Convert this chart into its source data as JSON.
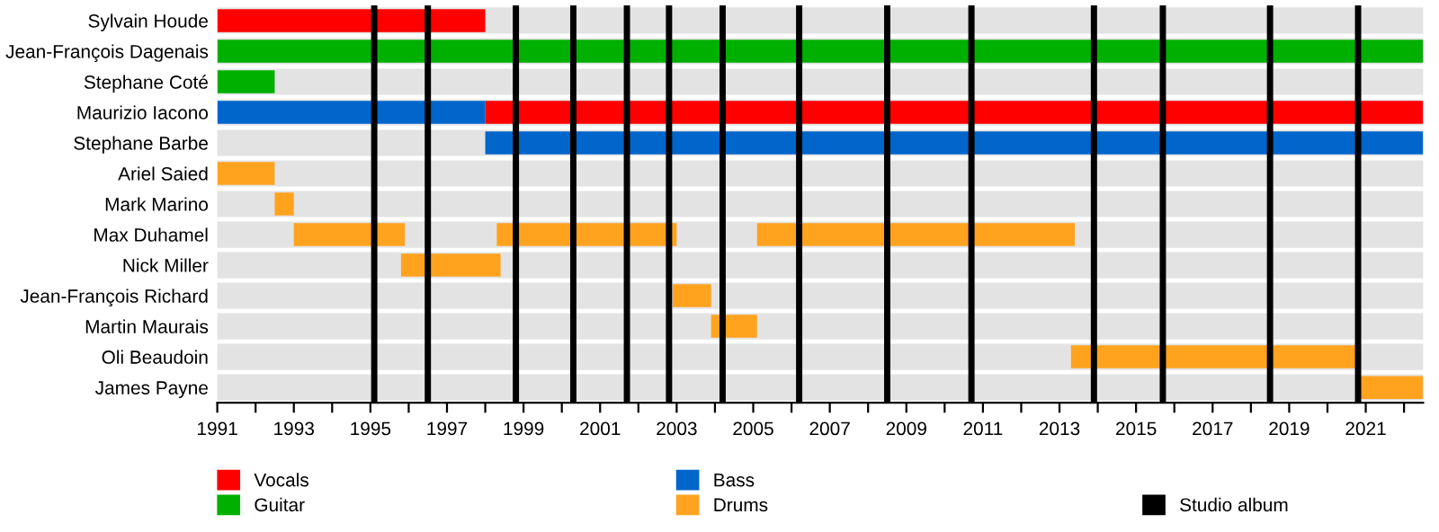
{
  "chart_data": {
    "type": "bar",
    "orientation": "horizontal",
    "categories": [
      "Sylvain Houde",
      "Jean-François Dagenais",
      "Stephane Coté",
      "Maurizio Iacono",
      "Stephane Barbe",
      "Ariel Saied",
      "Mark Marino",
      "Max Duhamel",
      "Nick Miller",
      "Jean-François Richard",
      "Martin Maurais",
      "Oli Beaudoin",
      "James Payne"
    ],
    "series": [
      {
        "name": "Vocals",
        "color": "#ff0000",
        "base": [
          1991,
          null,
          null,
          1998,
          null,
          null,
          null,
          null,
          null,
          null,
          null,
          null,
          null
        ],
        "values": [
          7.0,
          null,
          null,
          24.5,
          null,
          null,
          null,
          null,
          null,
          null,
          null,
          null,
          null
        ]
      },
      {
        "name": "Guitar",
        "color": "#00b000",
        "base": [
          null,
          1991,
          1991,
          null,
          null,
          null,
          null,
          null,
          null,
          null,
          null,
          null,
          null
        ],
        "values": [
          null,
          31.5,
          1.5,
          null,
          null,
          null,
          null,
          null,
          null,
          null,
          null,
          null,
          null
        ]
      },
      {
        "name": "Bass",
        "color": "#0066cc",
        "base": [
          null,
          null,
          null,
          1991,
          1998,
          null,
          null,
          null,
          null,
          null,
          null,
          null,
          null
        ],
        "values": [
          null,
          null,
          null,
          7.0,
          24.5,
          null,
          null,
          null,
          null,
          null,
          null,
          null,
          null
        ]
      },
      {
        "name": "Drums",
        "color": "#ffa31f",
        "base": [
          null,
          null,
          null,
          null,
          null,
          1991,
          1992.5,
          1993,
          1995.8,
          2002.9,
          2003.9,
          2013.3,
          2020.8
        ],
        "values": [
          null,
          null,
          null,
          null,
          null,
          1.5,
          0.5,
          2.9,
          2.6,
          1.0,
          1.2,
          7.5,
          1.7
        ]
      },
      {
        "color": "#ffa31f",
        "base": [
          null,
          null,
          null,
          null,
          null,
          null,
          null,
          1998.3,
          null,
          null,
          null,
          null,
          null
        ],
        "values": [
          null,
          null,
          null,
          null,
          null,
          null,
          null,
          4.7,
          null,
          null,
          null,
          null,
          null
        ]
      },
      {
        "color": "#ffa31f",
        "base": [
          null,
          null,
          null,
          null,
          null,
          null,
          null,
          2005.1,
          null,
          null,
          null,
          null,
          null
        ],
        "values": [
          null,
          null,
          null,
          null,
          null,
          null,
          null,
          8.3,
          null,
          null,
          null,
          null,
          null
        ]
      }
    ],
    "ref_lines": [
      {
        "axis": "x",
        "value": 1995.1,
        "label": "Studio album",
        "color": "#000000"
      },
      {
        "axis": "x",
        "value": 1996.5,
        "color": "#000000"
      },
      {
        "axis": "x",
        "value": 1998.8,
        "color": "#000000"
      },
      {
        "axis": "x",
        "value": 2000.3,
        "color": "#000000"
      },
      {
        "axis": "x",
        "value": 2001.7,
        "color": "#000000"
      },
      {
        "axis": "x",
        "value": 2002.8,
        "color": "#000000"
      },
      {
        "axis": "x",
        "value": 2004.2,
        "color": "#000000"
      },
      {
        "axis": "x",
        "value": 2006.2,
        "color": "#000000"
      },
      {
        "axis": "x",
        "value": 2008.5,
        "color": "#000000"
      },
      {
        "axis": "x",
        "value": 2010.7,
        "color": "#000000"
      },
      {
        "axis": "x",
        "value": 2013.9,
        "color": "#000000"
      },
      {
        "axis": "x",
        "value": 2015.7,
        "color": "#000000"
      },
      {
        "axis": "x",
        "value": 2018.5,
        "color": "#000000"
      },
      {
        "axis": "x",
        "value": 2020.8,
        "color": "#000000"
      }
    ],
    "xlim": [
      1991,
      2022.5
    ],
    "xticks": [
      1991,
      {
        "value": 1992,
        "label": null
      },
      1993,
      {
        "value": 1994,
        "label": null
      },
      1995,
      {
        "value": 1996,
        "label": null
      },
      1997,
      {
        "value": 1998,
        "label": null
      },
      1999,
      {
        "value": 2000,
        "label": null
      },
      2001,
      {
        "value": 2002,
        "label": null
      },
      2003,
      {
        "value": 2004,
        "label": null
      },
      2005,
      {
        "value": 2006,
        "label": null
      },
      2007,
      {
        "value": 2008,
        "label": null
      },
      2009,
      {
        "value": 2010,
        "label": null
      },
      2011,
      {
        "value": 2012,
        "label": null
      },
      2013,
      {
        "value": 2014,
        "label": null
      },
      2015,
      {
        "value": 2016,
        "label": null
      },
      2017,
      {
        "value": 2018,
        "label": null
      },
      2019,
      {
        "value": 2020,
        "label": null
      },
      2021,
      {
        "value": 2022,
        "label": null
      }
    ],
    "grid": "y",
    "legend": "bottom"
  }
}
